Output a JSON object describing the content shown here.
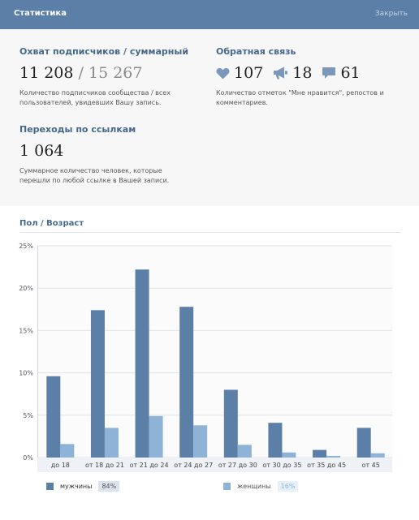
{
  "header": {
    "title": "Статистика",
    "close_label": "Закрыть"
  },
  "reach": {
    "heading": "Охват подписчиков / суммарный",
    "subscribers": "11 208",
    "separator": "/",
    "total": "15 267",
    "description_line1": "Количество подписчиков сообщества / всех",
    "description_line2": "пользователей, увидевших Вашу запись."
  },
  "feedback": {
    "heading": "Обратная связь",
    "likes": "107",
    "reposts": "18",
    "comments": "61",
    "description_line1": "Количество отметок \"Мне нравится\", репостов и",
    "description_line2": "комментариев."
  },
  "links": {
    "heading": "Переходы по ссылкам",
    "value": "1 064",
    "description_line1": "Суммарное количество человек, которые",
    "description_line2": "перешли по любой ссылке в Вашей записи."
  },
  "section": {
    "title": "Пол / Возраст"
  },
  "chart_data": {
    "type": "bar",
    "categories": [
      "до 18",
      "от 18 до 21",
      "от 21 до 24",
      "от 24 до 27",
      "от 27 до 30",
      "от 30 до 35",
      "от 35 до 45",
      "от 45"
    ],
    "series": [
      {
        "name": "мужчины",
        "values": [
          9.6,
          17.4,
          22.2,
          17.8,
          8.0,
          4.1,
          0.9,
          3.5
        ],
        "color": "#5b7fa6",
        "share": "84%"
      },
      {
        "name": "женщины",
        "values": [
          1.6,
          3.5,
          4.9,
          3.8,
          1.5,
          0.6,
          0.2,
          0.5
        ],
        "color": "#8eb3d6",
        "share": "16%"
      }
    ],
    "yticks": [
      "0%",
      "5%",
      "10%",
      "15%",
      "20%",
      "25%"
    ],
    "ylim": [
      0,
      25
    ],
    "grid": true,
    "legend_position": "bottom"
  }
}
